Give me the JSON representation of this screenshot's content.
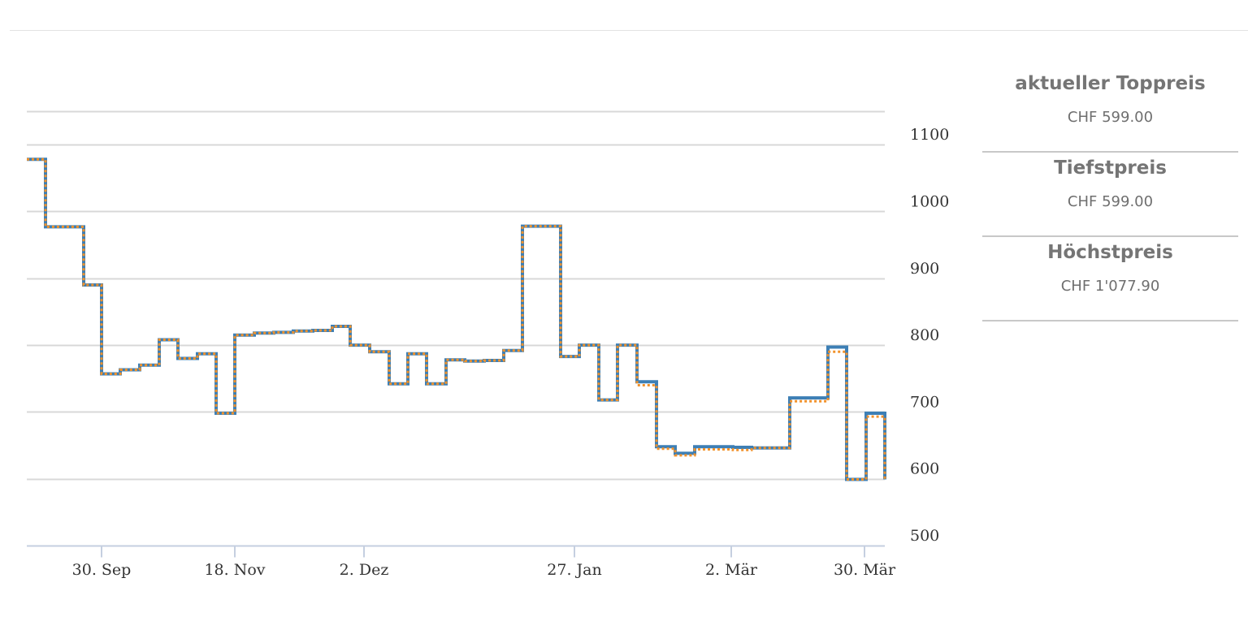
{
  "chart_data": {
    "type": "line",
    "step": true,
    "x_tick_labels": [
      "30. Sep",
      "18. Nov",
      "2. Dez",
      "27. Jan",
      "2. Mär",
      "30. Mär"
    ],
    "y_ticks": [
      500,
      600,
      700,
      800,
      900,
      1000,
      1100
    ],
    "ylim": [
      500,
      1150
    ],
    "y_axis_side": "right",
    "grid": true,
    "colors": {
      "series_a": "#3d7fb5",
      "series_b": "#f2922b"
    },
    "series": [
      {
        "values": [
          1077.9,
          977,
          977,
          890,
          757,
          763,
          770,
          808,
          780,
          787,
          698,
          815,
          818,
          819,
          821,
          822,
          828,
          800,
          790,
          742,
          787,
          742,
          778,
          776,
          777,
          792,
          978,
          978,
          783,
          800,
          718,
          800,
          745,
          648,
          638,
          648,
          648,
          647,
          646,
          646,
          721,
          721,
          797,
          599,
          698,
          599
        ]
      },
      {
        "values": [
          1077.9,
          977,
          977,
          890,
          757,
          763,
          770,
          808,
          780,
          787,
          698,
          815,
          818,
          819,
          821,
          822,
          828,
          800,
          790,
          742,
          787,
          742,
          778,
          776,
          777,
          792,
          978,
          978,
          783,
          800,
          718,
          800,
          740,
          645,
          635,
          644,
          644,
          643,
          646,
          646,
          716,
          716,
          790,
          599,
          693,
          599
        ]
      }
    ]
  },
  "stats": [
    {
      "title": "aktueller Toppreis",
      "value": "CHF 599.00"
    },
    {
      "title": "Tiefstpreis",
      "value": "CHF 599.00"
    },
    {
      "title": "Höchstpreis",
      "value": "CHF 1'077.90"
    }
  ]
}
